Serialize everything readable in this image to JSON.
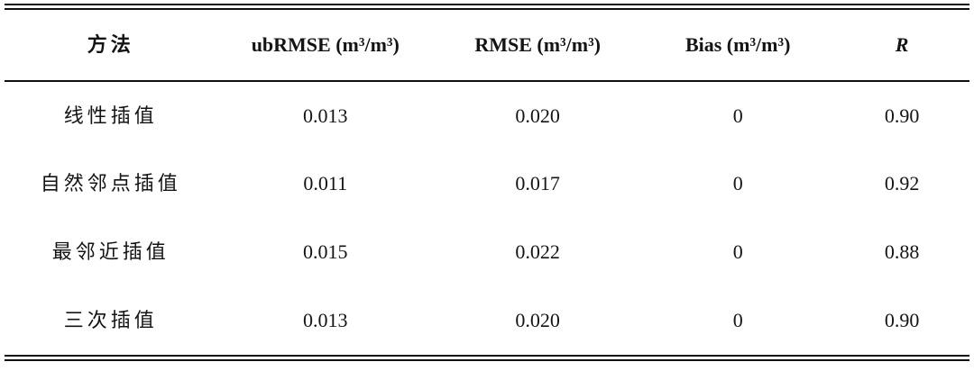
{
  "table": {
    "columns": {
      "method": "方法",
      "ubrmse": "ubRMSE (m³/m³)",
      "rmse": "RMSE (m³/m³)",
      "bias": "Bias (m³/m³)",
      "r": "R"
    },
    "rows": [
      {
        "method": "线性插值",
        "ubrmse": "0.013",
        "rmse": "0.020",
        "bias": "0",
        "r": "0.90"
      },
      {
        "method": "自然邻点插值",
        "ubrmse": "0.011",
        "rmse": "0.017",
        "bias": "0",
        "r": "0.92"
      },
      {
        "method": "最邻近插值",
        "ubrmse": "0.015",
        "rmse": "0.022",
        "bias": "0",
        "r": "0.88"
      },
      {
        "method": "三次插值",
        "ubrmse": "0.013",
        "rmse": "0.020",
        "bias": "0",
        "r": "0.90"
      }
    ]
  },
  "colors": {
    "text": "#141414",
    "rule": "#101010",
    "background": "#ffffff"
  }
}
